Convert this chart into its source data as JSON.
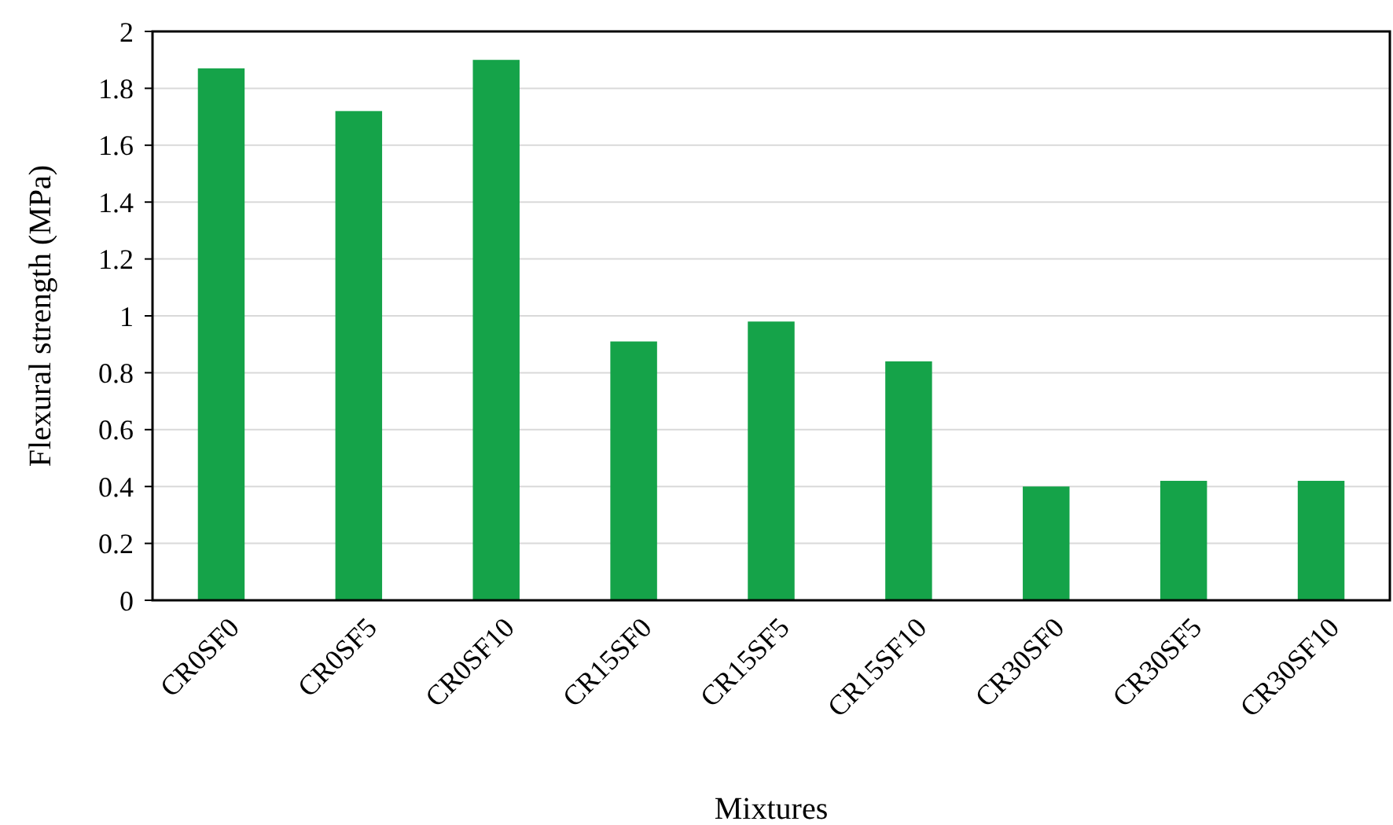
{
  "chart_data": {
    "type": "bar",
    "xlabel": "Mixtures",
    "ylabel": "Flexural strength (MPa)",
    "categories": [
      "CR0SF0",
      "CR0SF5",
      "CR0SF10",
      "CR15SF0",
      "CR15SF5",
      "CR15SF10",
      "CR30SF0",
      "CR30SF5",
      "CR30SF10"
    ],
    "values": [
      1.87,
      1.72,
      1.9,
      0.91,
      0.98,
      0.84,
      0.4,
      0.42,
      0.42
    ],
    "color": "#15a349",
    "ylim": [
      0,
      2
    ],
    "yticks": [
      0,
      0.2,
      0.4,
      0.6,
      0.8,
      1,
      1.2,
      1.4,
      1.6,
      1.8,
      2
    ],
    "grid": "y"
  }
}
